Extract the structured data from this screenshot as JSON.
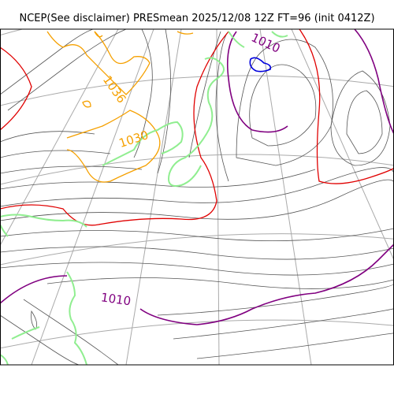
{
  "title": "NCEP(See disclaimer) PRESmean 2025/12/08 12Z FT=96 (init 0412Z)",
  "contour_labels": [
    {
      "text": "1010",
      "color": "#800080"
    },
    {
      "text": "1036",
      "color": "#f5a000"
    },
    {
      "text": "1030",
      "color": "#f5a000"
    },
    {
      "text": "1010",
      "color": "#800080"
    }
  ],
  "colors": {
    "isobar": "#555555",
    "highlight_1010": "#800080",
    "orange_high": "#f5a000",
    "red_line": "#e00000",
    "blue_low": "#0000dd",
    "coastline": "#90ee90",
    "graticule": "#aaaaaa"
  }
}
